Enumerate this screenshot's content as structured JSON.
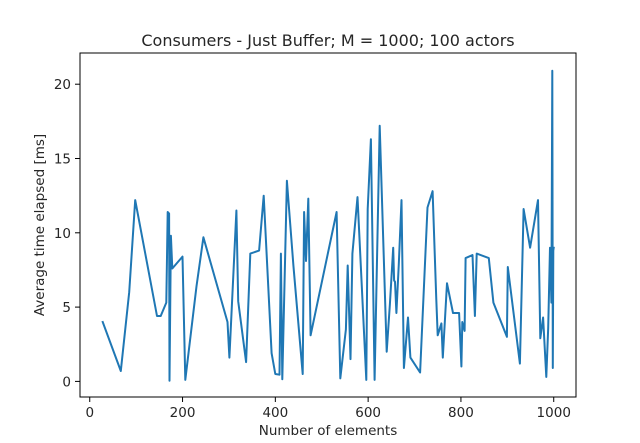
{
  "chart_data": {
    "type": "line",
    "title": "Consumers - Just Buffer; M = 1000; 100 actors",
    "xlabel": "Number of elements",
    "ylabel": "Average time elapsed [ms]",
    "xlim": [
      -21,
      1048
    ],
    "ylim": [
      -1.05,
      22.1
    ],
    "xticks": [
      0,
      200,
      400,
      600,
      800,
      1000
    ],
    "yticks": [
      0,
      5,
      10,
      15,
      20
    ],
    "grid": false,
    "legend": "none",
    "series": [
      {
        "color": "#1f77b4",
        "x": [
          28,
          67,
          85,
          98,
          145,
          153,
          165,
          168,
          171,
          172,
          175,
          178,
          200,
          206,
          230,
          245,
          297,
          301,
          316,
          320,
          337,
          346,
          365,
          375,
          392,
          400,
          409,
          412,
          415,
          425,
          439,
          459,
          462,
          466,
          471,
          476,
          532,
          540,
          552,
          556,
          562,
          566,
          577,
          596,
          599,
          606,
          614,
          625,
          640,
          647,
          654,
          656,
          658,
          661,
          666,
          672,
          677,
          686,
          691,
          712,
          728,
          739,
          747,
          750,
          758,
          761,
          770,
          783,
          796,
          801,
          803,
          808,
          810,
          825,
          830,
          834,
          860,
          870,
          899,
          901,
          927,
          935,
          949,
          966,
          971,
          977,
          984,
          988,
          992,
          995,
          997,
          998,
          999,
          1000
        ],
        "y": [
          4.0,
          0.7,
          6.0,
          12.2,
          4.4,
          4.4,
          5.3,
          11.4,
          11.3,
          0.05,
          9.8,
          7.6,
          8.4,
          0.1,
          6.4,
          9.7,
          4.0,
          1.6,
          11.5,
          5.4,
          1.3,
          8.6,
          8.8,
          12.5,
          1.9,
          0.5,
          0.45,
          8.6,
          0.15,
          13.5,
          7.8,
          0.5,
          11.4,
          8.1,
          12.3,
          3.1,
          11.4,
          0.2,
          3.5,
          7.8,
          1.5,
          8.6,
          12.4,
          0.1,
          11.6,
          16.3,
          0.1,
          17.2,
          2.0,
          5.2,
          9.0,
          6.8,
          6.7,
          4.6,
          7.9,
          12.2,
          0.9,
          4.3,
          1.6,
          0.6,
          11.7,
          12.8,
          5.5,
          3.1,
          3.9,
          1.6,
          6.6,
          4.6,
          4.6,
          1.0,
          4.0,
          3.4,
          8.3,
          8.5,
          4.4,
          8.6,
          8.3,
          5.3,
          3.0,
          7.7,
          1.2,
          11.6,
          9.0,
          12.2,
          2.9,
          4.3,
          0.3,
          3.6,
          9.0,
          5.3,
          20.9,
          0.9,
          8.8,
          9.0
        ]
      }
    ]
  }
}
